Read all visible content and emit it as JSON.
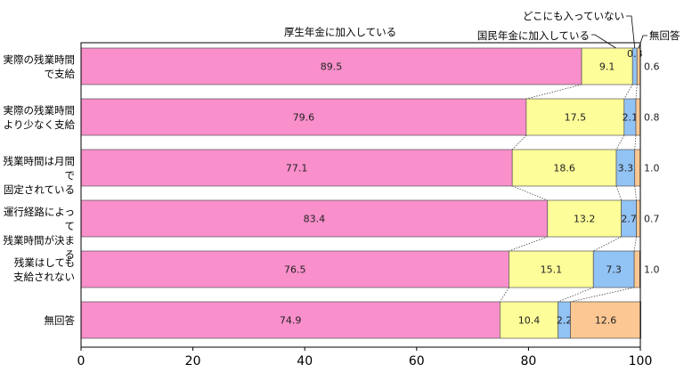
{
  "chart_data": {
    "type": "bar",
    "orientation": "horizontal",
    "stacked": true,
    "percent": true,
    "xlim": [
      0,
      100
    ],
    "x_ticks": [
      "0",
      "20",
      "40",
      "60",
      "80",
      "100"
    ],
    "categories": [
      "実際の残業時間\nで支給",
      "実際の残業時間\nより少なく支給",
      "残業時間は月間で\n固定されている",
      "運行経路によって\n残業時間が決まる",
      "残業はしても\n支給されない",
      "無回答"
    ],
    "series": [
      {
        "name": "厚生年金に加入している",
        "color": "#f98fcb",
        "values": [
          89.5,
          79.6,
          77.1,
          83.4,
          76.5,
          74.9
        ]
      },
      {
        "name": "国民年金に加入している",
        "color": "#fdfd99",
        "values": [
          9.1,
          17.5,
          18.6,
          13.2,
          15.1,
          10.4
        ]
      },
      {
        "name": "どこにも入っていない",
        "color": "#92c3f5",
        "values": [
          0.8,
          2.1,
          3.3,
          2.7,
          7.3,
          2.2
        ]
      },
      {
        "name": "無回答",
        "color": "#fcc793",
        "values": [
          0.6,
          0.8,
          1.0,
          0.7,
          1.0,
          12.6
        ]
      }
    ],
    "value_labels": [
      [
        "89.5",
        "9.1",
        "0.8",
        "0.6"
      ],
      [
        "79.6",
        "17.5",
        "2.1",
        "0.8"
      ],
      [
        "77.1",
        "18.6",
        "3.3",
        "1.0"
      ],
      [
        "83.4",
        "13.2",
        "2.7",
        "0.7"
      ],
      [
        "76.5",
        "15.1",
        "7.3",
        "1.0"
      ],
      [
        "74.9",
        "10.4",
        "2.2",
        "12.6"
      ]
    ],
    "grid": false,
    "legend": "top (labels with leader lines)"
  }
}
